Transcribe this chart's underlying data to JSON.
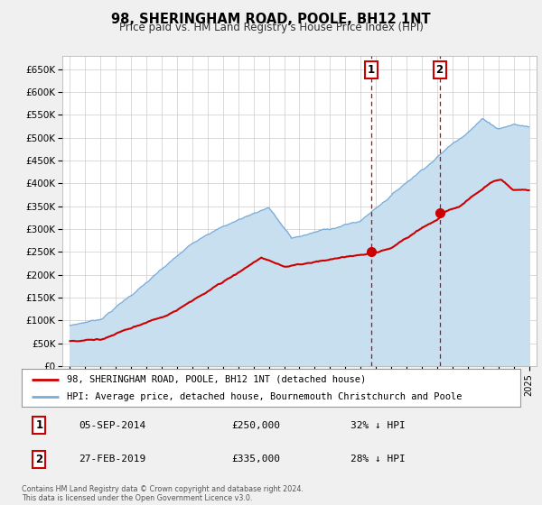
{
  "title": "98, SHERINGHAM ROAD, POOLE, BH12 1NT",
  "subtitle": "Price paid vs. HM Land Registry's House Price Index (HPI)",
  "ylabel_ticks": [
    "£0",
    "£50K",
    "£100K",
    "£150K",
    "£200K",
    "£250K",
    "£300K",
    "£350K",
    "£400K",
    "£450K",
    "£500K",
    "£550K",
    "£600K",
    "£650K"
  ],
  "ytick_values": [
    0,
    50000,
    100000,
    150000,
    200000,
    250000,
    300000,
    350000,
    400000,
    450000,
    500000,
    550000,
    600000,
    650000
  ],
  "xlim": [
    1994.5,
    2025.5
  ],
  "ylim": [
    0,
    680000
  ],
  "red_line_color": "#cc0000",
  "blue_line_color": "#7aadda",
  "blue_fill_color": "#c8dff0",
  "annotation_box_color": "#cc0000",
  "annotation_bg": "#ffffff",
  "grid_color": "#cccccc",
  "bg_color": "#f0f0f0",
  "plot_bg": "#ffffff",
  "marker1_x": 2014.68,
  "marker1_y": 250000,
  "marker2_x": 2019.16,
  "marker2_y": 335000,
  "vline1_x": 2014.68,
  "vline2_x": 2019.16,
  "legend_label_red": "98, SHERINGHAM ROAD, POOLE, BH12 1NT (detached house)",
  "legend_label_blue": "HPI: Average price, detached house, Bournemouth Christchurch and Poole",
  "annotation1_num": "1",
  "annotation2_num": "2",
  "annotation1_date": "05-SEP-2014",
  "annotation1_price": "£250,000",
  "annotation1_pct": "32% ↓ HPI",
  "annotation2_date": "27-FEB-2019",
  "annotation2_price": "£335,000",
  "annotation2_pct": "28% ↓ HPI",
  "footer1": "Contains HM Land Registry data © Crown copyright and database right 2024.",
  "footer2": "This data is licensed under the Open Government Licence v3.0."
}
